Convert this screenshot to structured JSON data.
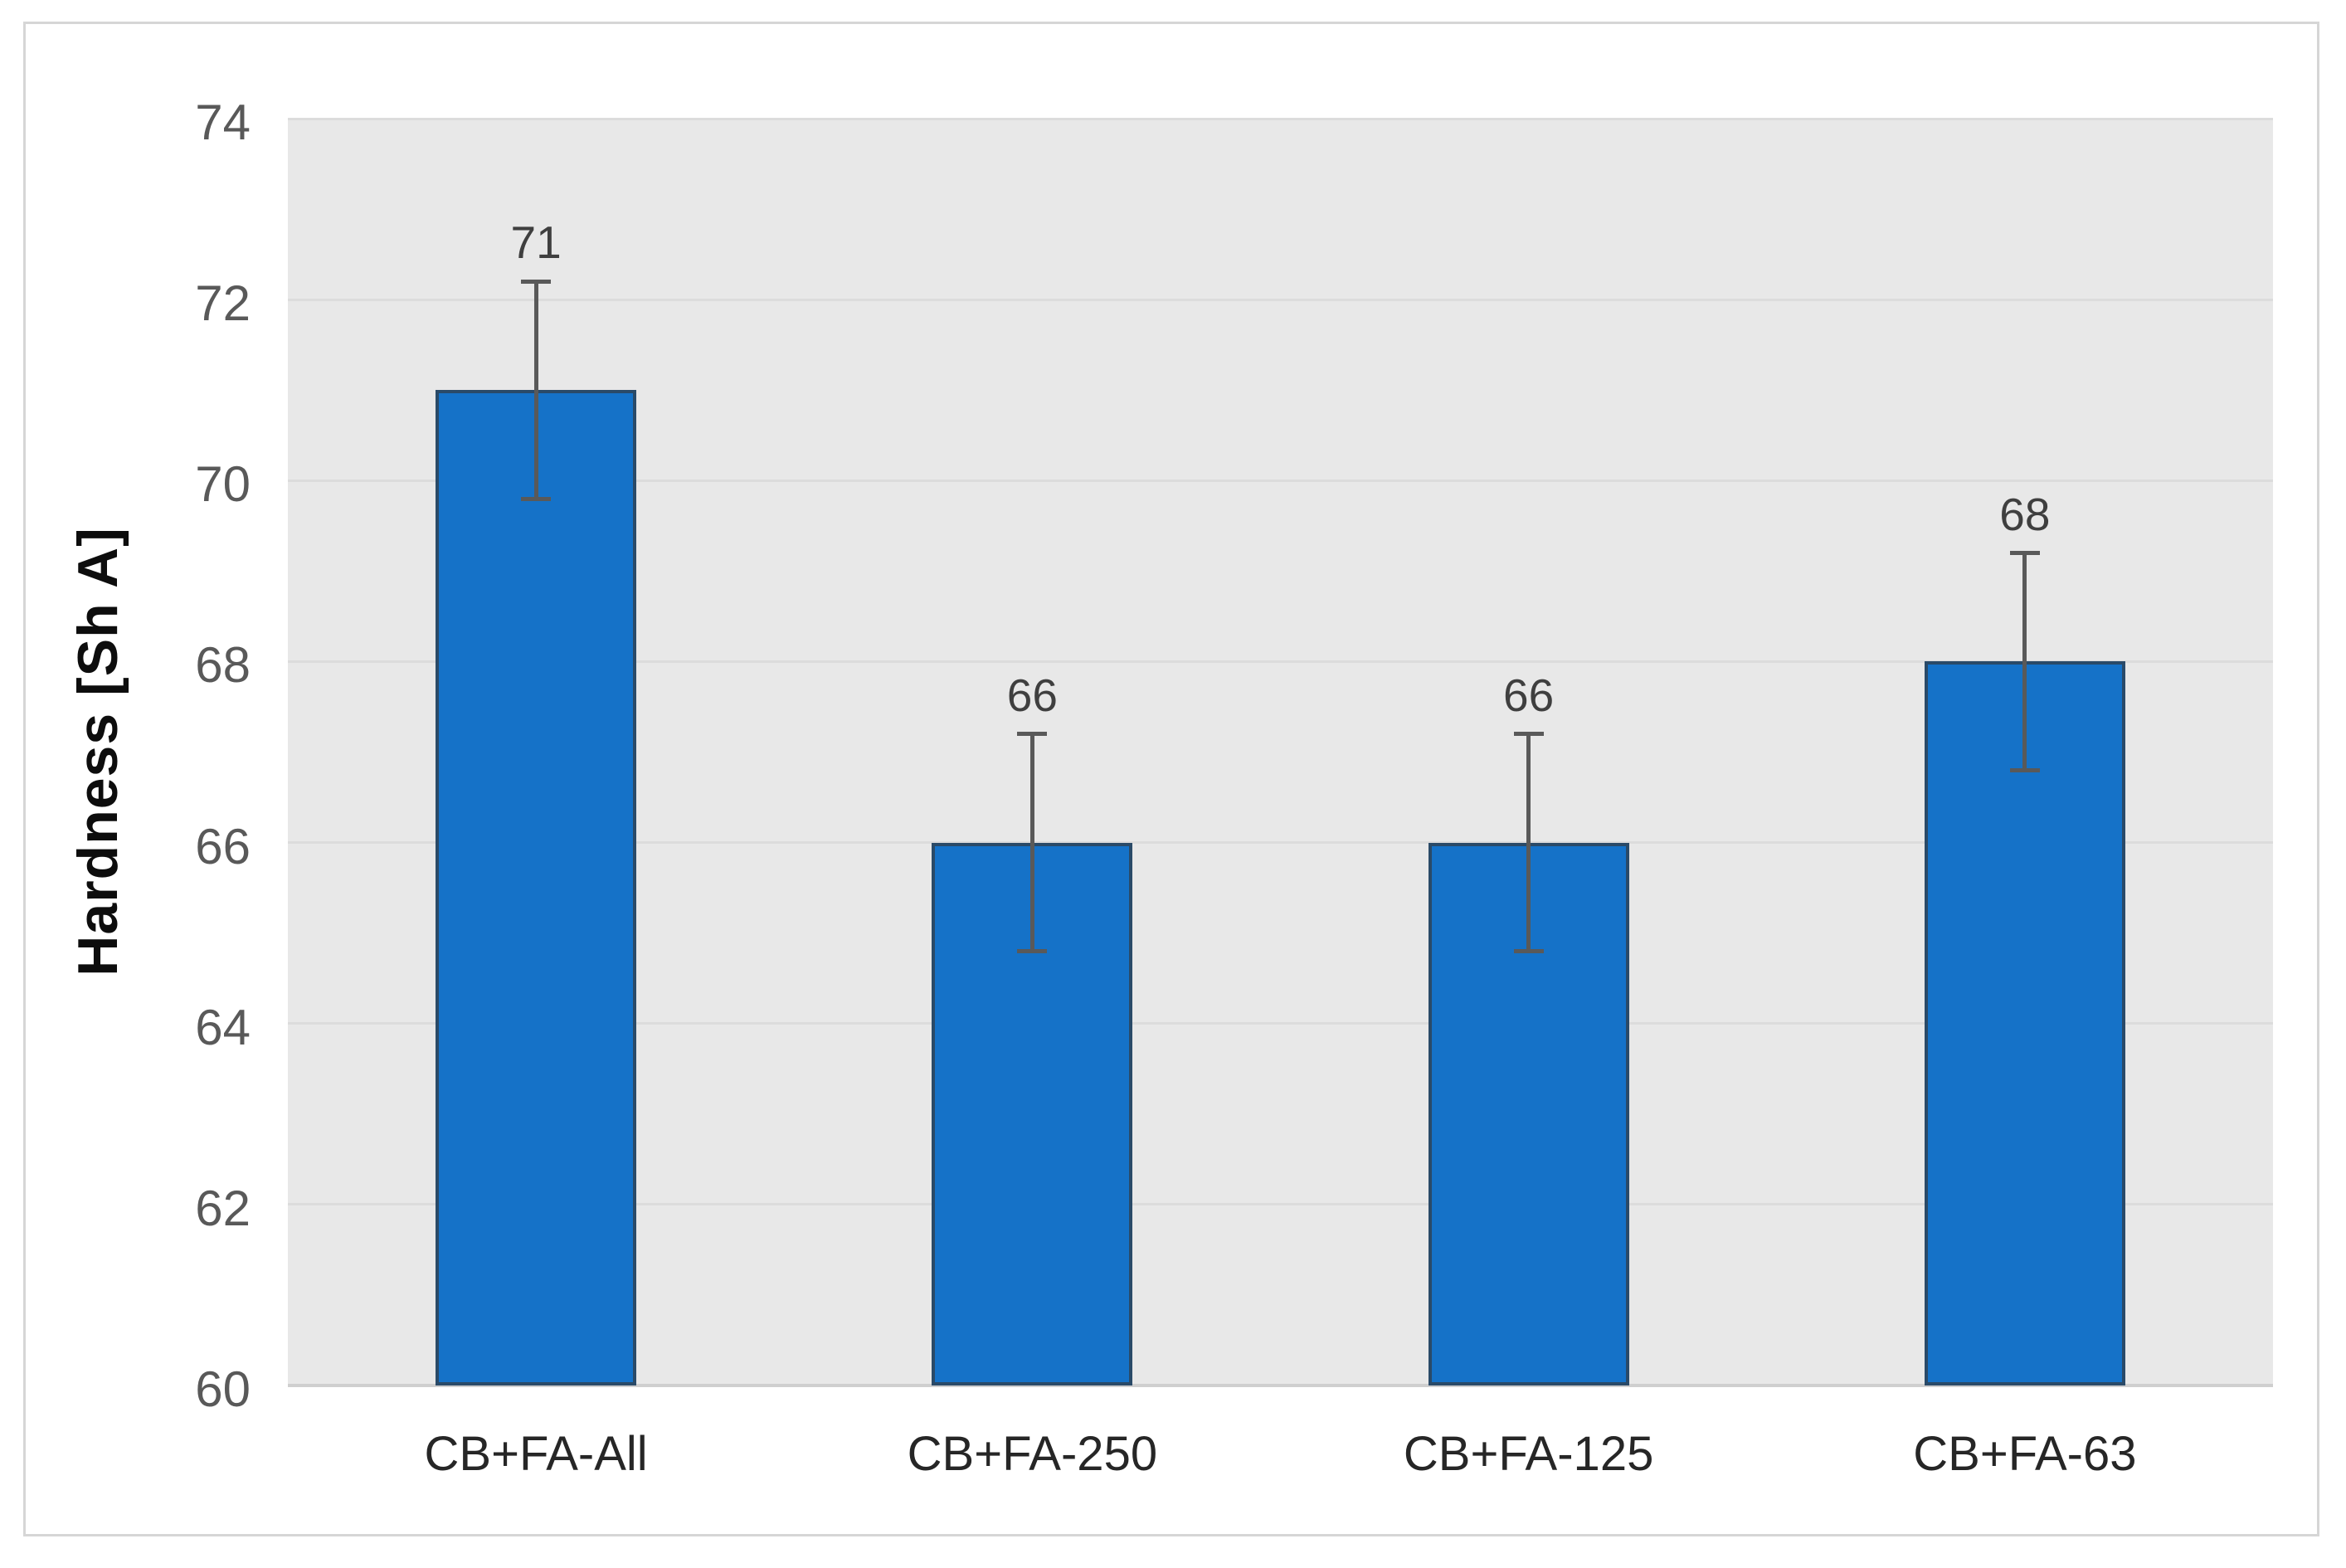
{
  "frame": {
    "background": "#FFFFFF",
    "border_color": "#D6D6D6"
  },
  "chart_data": {
    "type": "bar",
    "categories": [
      "CB+FA-All",
      "CB+FA-250",
      "CB+FA-125",
      "CB+FA-63"
    ],
    "values": [
      71,
      66,
      66,
      68
    ],
    "data_labels": [
      "71",
      "66",
      "66",
      "68"
    ],
    "error_bars": [
      1.2,
      1.2,
      1.2,
      1.2
    ],
    "title": "",
    "xlabel": "",
    "ylabel": "Hardness [Sh A]",
    "ylim": [
      60,
      74
    ],
    "yticks": [
      60,
      62,
      64,
      66,
      68,
      70,
      72,
      74
    ],
    "grid": true,
    "legend_position": "none",
    "colors": {
      "bar_fill": "#1572C8",
      "bar_border": "#2A4A68",
      "error_bar": "#595959",
      "plot_background": "#E8E8E8",
      "gridline": "#DCDCDC",
      "axis_line": "#CFCFCF",
      "tick_label": "#595959",
      "category_label": "#262626",
      "data_label": "#3F3F3F",
      "axis_title": "#0D0D0D"
    }
  }
}
